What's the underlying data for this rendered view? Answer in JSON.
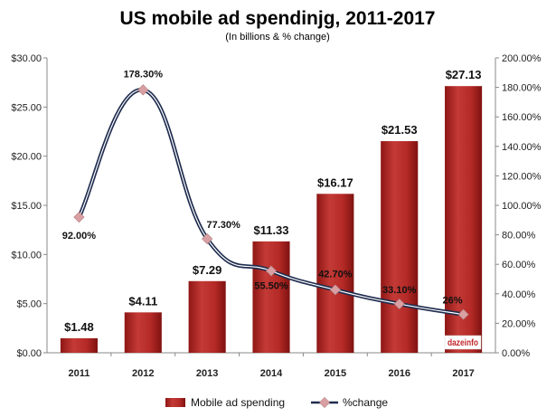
{
  "chart_data": {
    "type": "bar",
    "title": "US mobile ad spendinjg, 2011-2017",
    "subtitle": "(In billions & % change)",
    "categories": [
      "2011",
      "2012",
      "2013",
      "2014",
      "2015",
      "2016",
      "2017"
    ],
    "series": [
      {
        "name": "Mobile ad spending",
        "type": "bar",
        "axis": "left",
        "values": [
          1.48,
          4.11,
          7.29,
          11.33,
          16.17,
          21.53,
          27.13
        ],
        "labels": [
          "$1.48",
          "$4.11",
          "$7.29",
          "$11.33",
          "$16.17",
          "$21.53",
          "$27.13"
        ],
        "color": "#b52a27"
      },
      {
        "name": "%change",
        "type": "line",
        "axis": "right",
        "values": [
          92.0,
          178.3,
          77.3,
          55.5,
          42.7,
          33.1,
          26.0
        ],
        "labels": [
          "92.00%",
          "178.30%",
          "77.30%",
          "55.50%",
          "42.70%",
          "33.10%",
          "26%"
        ],
        "color": "#1f2d4f",
        "marker_color": "#d9a0a3"
      }
    ],
    "y_left": {
      "lim": [
        0,
        30
      ],
      "ticks": [
        0,
        5,
        10,
        15,
        20,
        25,
        30
      ],
      "tick_labels": [
        "$0.00",
        "$5.00",
        "$10.00",
        "$15.00",
        "$20.00",
        "$25.00",
        "$30.00"
      ]
    },
    "y_right": {
      "lim": [
        0,
        200
      ],
      "ticks": [
        0,
        20,
        40,
        60,
        80,
        100,
        120,
        140,
        160,
        180,
        200
      ],
      "tick_labels": [
        "0.00%",
        "20.00%",
        "40.00%",
        "60.00%",
        "80.00%",
        "100.00%",
        "120.00%",
        "140.00%",
        "160.00%",
        "180.00%",
        "200.00%"
      ]
    },
    "grid": false,
    "legend": "bottom"
  },
  "logo": {
    "text": "dazeinfo"
  }
}
